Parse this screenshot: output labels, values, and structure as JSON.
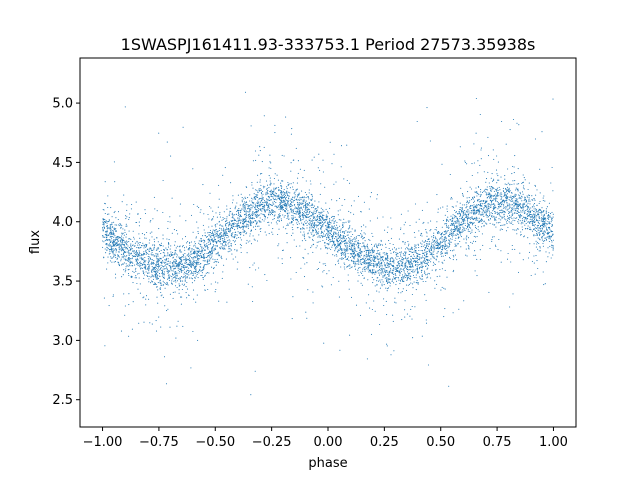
{
  "chart_data": {
    "type": "scatter",
    "title": "1SWASPJ161411.93-333753.1 Period 27573.35938s",
    "xlabel": "phase",
    "ylabel": "flux",
    "xlim": [
      -1.1,
      1.1
    ],
    "ylim": [
      2.27,
      5.38
    ],
    "x_ticks": [
      -1.0,
      -0.75,
      -0.5,
      -0.25,
      0.0,
      0.25,
      0.5,
      0.75,
      1.0
    ],
    "x_tick_labels": [
      "−1.00",
      "−0.75",
      "−0.50",
      "−0.25",
      "0.00",
      "0.25",
      "0.50",
      "0.75",
      "1.00"
    ],
    "y_ticks": [
      2.5,
      3.0,
      3.5,
      4.0,
      4.5,
      5.0
    ],
    "y_tick_labels": [
      "2.5",
      "3.0",
      "3.5",
      "4.0",
      "4.5",
      "5.0"
    ],
    "grid": false,
    "legend": "none",
    "marker_color": "#1f77b4",
    "series": [
      {
        "x": [
          -1.0,
          -0.95,
          -0.9,
          -0.85,
          -0.8,
          -0.75,
          -0.7,
          -0.65,
          -0.6,
          -0.55,
          -0.5,
          -0.45,
          -0.4,
          -0.35,
          -0.3,
          -0.25,
          -0.2,
          -0.15,
          -0.1,
          -0.05,
          0.0,
          0.05,
          0.1,
          0.15,
          0.2,
          0.25,
          0.3,
          0.35,
          0.4,
          0.45,
          0.5,
          0.55,
          0.6,
          0.65,
          0.7,
          0.75,
          0.8,
          0.85,
          0.9,
          0.95,
          1.0
        ],
        "y": [
          3.92,
          3.84,
          3.77,
          3.71,
          3.66,
          3.63,
          3.62,
          3.63,
          3.67,
          3.73,
          3.81,
          3.9,
          3.99,
          4.07,
          4.13,
          4.16,
          4.16,
          4.13,
          4.07,
          3.99,
          3.91,
          3.84,
          3.77,
          3.71,
          3.66,
          3.63,
          3.62,
          3.63,
          3.67,
          3.73,
          3.81,
          3.9,
          3.99,
          4.07,
          4.13,
          4.16,
          4.16,
          4.13,
          4.07,
          3.99,
          3.92
        ]
      }
    ]
  }
}
